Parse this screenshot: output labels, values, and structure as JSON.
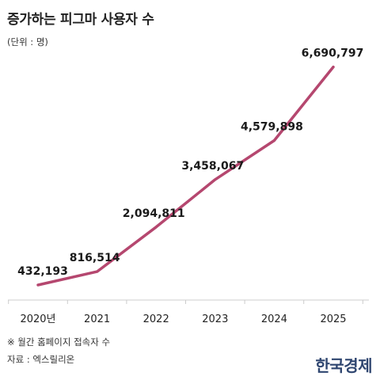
{
  "header": {
    "title": "증가하는 피그마 사용자 수",
    "unit": "(단위 : 명)"
  },
  "chart_data": {
    "type": "line",
    "title": "증가하는 피그마 사용자 수",
    "xlabel": "",
    "ylabel": "",
    "categories": [
      "2020년",
      "2021",
      "2022",
      "2023",
      "2024",
      "2025"
    ],
    "series": [
      {
        "values": [
          432193,
          816514,
          2094811,
          3458067,
          4579898,
          6690797
        ],
        "labels": [
          "432,193",
          "816,514",
          "2,094,811",
          "3,458,067",
          "4,579,898",
          "6,690,797"
        ],
        "color": "#b5476f"
      }
    ],
    "ylim": [
      0,
      7000000
    ],
    "grid": false,
    "legend": "none"
  },
  "footer": {
    "note": "※ 월간 홈페이지 접속자 수",
    "source": "자료 : 엑스릴리온",
    "brand": "한국경제"
  },
  "colors": {
    "line": "#b5476f",
    "axis": "#cccccc",
    "brand": "#2f4670"
  }
}
